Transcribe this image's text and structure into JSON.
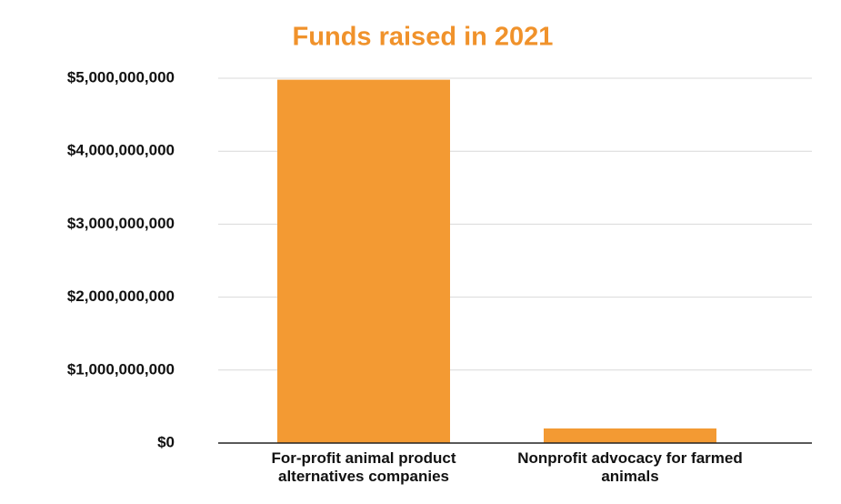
{
  "chart_data": {
    "type": "bar",
    "title": "Funds raised in 2021",
    "categories": [
      "For-profit animal product alternatives companies",
      "Nonprofit advocacy for farmed animals"
    ],
    "values": [
      4980000000,
      200000000
    ],
    "color": "#f39a33",
    "ylim": [
      0,
      5000000000
    ],
    "yticks": [
      {
        "value": 0,
        "label": "$0"
      },
      {
        "value": 1000000000,
        "label": "$1,000,000,000"
      },
      {
        "value": 2000000000,
        "label": "$2,000,000,000"
      },
      {
        "value": 3000000000,
        "label": "$3,000,000,000"
      },
      {
        "value": 4000000000,
        "label": "$4,000,000,000"
      },
      {
        "value": 5000000000,
        "label": "$5,000,000,000"
      }
    ],
    "grid": true
  }
}
